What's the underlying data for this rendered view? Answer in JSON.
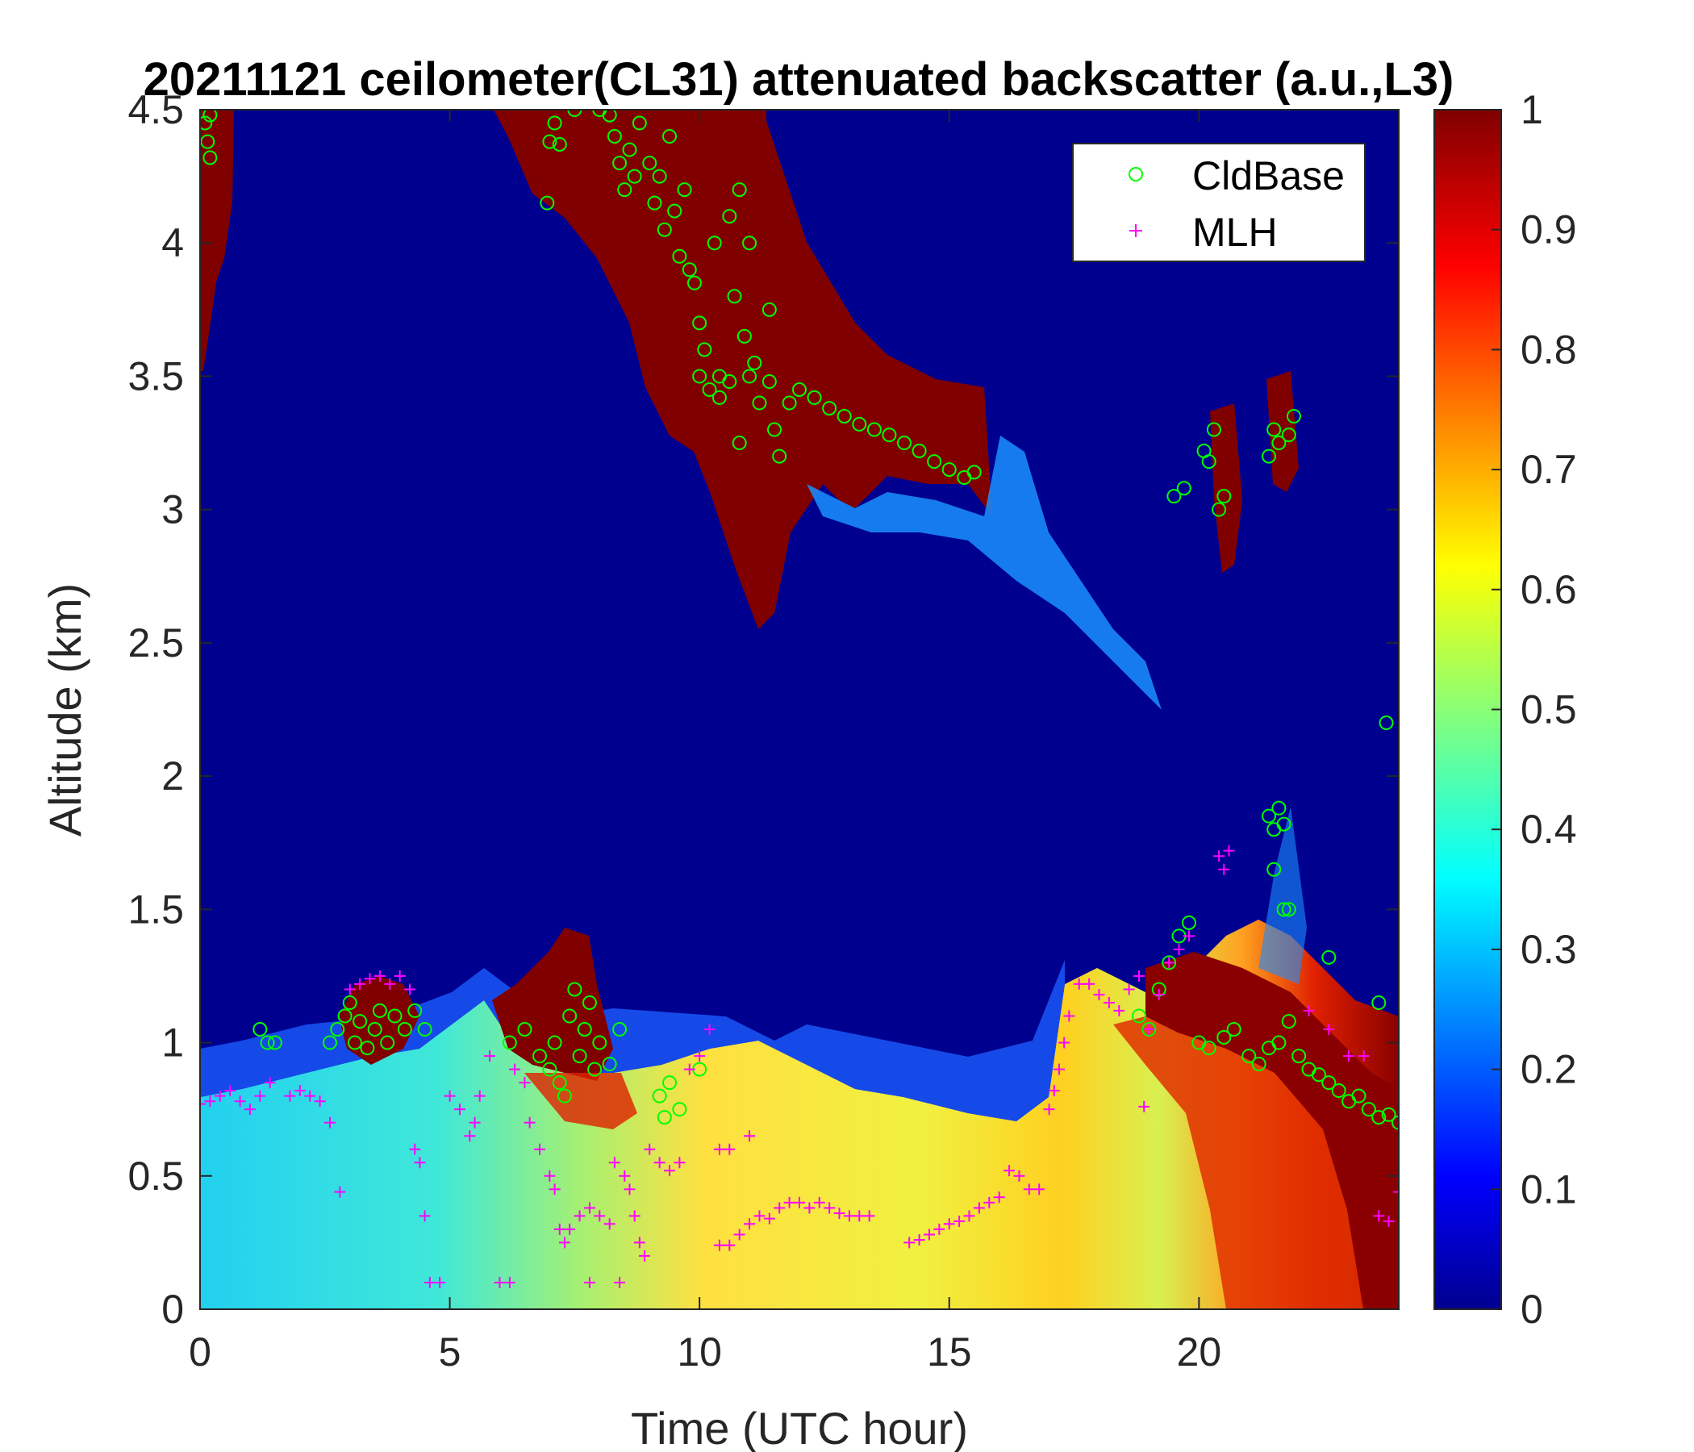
{
  "chart_data": {
    "type": "heatmap",
    "title": "20211121 ceilometer(CL31) attenuated backscatter (a.u.,L3)",
    "xlabel": "Time (UTC hour)",
    "ylabel": "Altitude (km)",
    "xlim": [
      0,
      24
    ],
    "ylim": [
      0,
      4.5
    ],
    "x_ticks": [
      "0",
      "5",
      "10",
      "15",
      "20"
    ],
    "y_ticks": [
      "0",
      "0.5",
      "1",
      "1.5",
      "2",
      "2.5",
      "3",
      "3.5",
      "4",
      "4.5"
    ],
    "colorbar": {
      "colormap": "jet",
      "range": [
        0,
        1
      ],
      "ticks": [
        "0",
        "0.1",
        "0.2",
        "0.3",
        "0.4",
        "0.5",
        "0.6",
        "0.7",
        "0.8",
        "0.9",
        "1"
      ]
    },
    "legend": {
      "position": "top-right",
      "entries": [
        {
          "label": "CldBase",
          "marker": "circle",
          "color": "#00ff00"
        },
        {
          "label": "MLH",
          "marker": "plus",
          "color": "#ff00ff"
        }
      ]
    },
    "series": [
      {
        "name": "CldBase",
        "marker": "circle",
        "color": "#00ff00",
        "points": [
          [
            0.1,
            4.45
          ],
          [
            0.15,
            4.38
          ],
          [
            0.2,
            4.32
          ],
          [
            0.2,
            4.48
          ],
          [
            1.2,
            1.05
          ],
          [
            1.35,
            1.0
          ],
          [
            1.5,
            1.0
          ],
          [
            2.6,
            1.0
          ],
          [
            2.75,
            1.05
          ],
          [
            2.9,
            1.1
          ],
          [
            3.0,
            1.15
          ],
          [
            3.1,
            1.0
          ],
          [
            3.2,
            1.08
          ],
          [
            3.35,
            0.98
          ],
          [
            3.5,
            1.05
          ],
          [
            3.6,
            1.12
          ],
          [
            3.75,
            1.0
          ],
          [
            3.9,
            1.1
          ],
          [
            4.1,
            1.05
          ],
          [
            4.3,
            1.12
          ],
          [
            4.5,
            1.05
          ],
          [
            6.2,
            1.0
          ],
          [
            6.5,
            1.05
          ],
          [
            6.8,
            0.95
          ],
          [
            7.0,
            0.9
          ],
          [
            7.1,
            1.0
          ],
          [
            7.2,
            0.85
          ],
          [
            7.3,
            0.8
          ],
          [
            7.4,
            1.1
          ],
          [
            7.5,
            1.2
          ],
          [
            7.6,
            0.95
          ],
          [
            7.7,
            1.05
          ],
          [
            7.8,
            1.15
          ],
          [
            7.9,
            0.9
          ],
          [
            8.0,
            1.0
          ],
          [
            8.2,
            0.92
          ],
          [
            8.4,
            1.05
          ],
          [
            6.95,
            4.15
          ],
          [
            7.0,
            4.38
          ],
          [
            7.1,
            4.45
          ],
          [
            7.2,
            4.37
          ],
          [
            7.5,
            4.5
          ],
          [
            8.0,
            4.5
          ],
          [
            8.2,
            4.48
          ],
          [
            8.3,
            4.4
          ],
          [
            8.4,
            4.3
          ],
          [
            8.5,
            4.2
          ],
          [
            8.6,
            4.35
          ],
          [
            8.7,
            4.25
          ],
          [
            8.8,
            4.45
          ],
          [
            9.0,
            4.3
          ],
          [
            9.1,
            4.15
          ],
          [
            9.2,
            4.25
          ],
          [
            9.3,
            4.05
          ],
          [
            9.4,
            4.4
          ],
          [
            9.5,
            4.12
          ],
          [
            9.6,
            3.95
          ],
          [
            9.7,
            4.2
          ],
          [
            9.8,
            3.9
          ],
          [
            9.9,
            3.85
          ],
          [
            10.0,
            3.7
          ],
          [
            10.1,
            3.6
          ],
          [
            10.3,
            4.0
          ],
          [
            10.4,
            3.5
          ],
          [
            10.6,
            4.1
          ],
          [
            10.7,
            3.8
          ],
          [
            10.8,
            4.2
          ],
          [
            10.9,
            3.65
          ],
          [
            11.0,
            4.0
          ],
          [
            11.1,
            3.55
          ],
          [
            11.2,
            3.4
          ],
          [
            11.4,
            3.75
          ],
          [
            11.5,
            3.3
          ],
          [
            11.6,
            3.2
          ],
          [
            10.0,
            3.5
          ],
          [
            10.2,
            3.45
          ],
          [
            10.4,
            3.42
          ],
          [
            10.6,
            3.48
          ],
          [
            10.8,
            3.25
          ],
          [
            11.0,
            3.5
          ],
          [
            11.4,
            3.48
          ],
          [
            11.8,
            3.4
          ],
          [
            12.0,
            3.45
          ],
          [
            12.3,
            3.42
          ],
          [
            12.6,
            3.38
          ],
          [
            12.9,
            3.35
          ],
          [
            13.2,
            3.32
          ],
          [
            13.5,
            3.3
          ],
          [
            13.8,
            3.28
          ],
          [
            14.1,
            3.25
          ],
          [
            14.4,
            3.22
          ],
          [
            14.7,
            3.18
          ],
          [
            15.0,
            3.15
          ],
          [
            15.3,
            3.12
          ],
          [
            15.5,
            3.14
          ],
          [
            9.2,
            0.8
          ],
          [
            9.3,
            0.72
          ],
          [
            9.4,
            0.85
          ],
          [
            9.6,
            0.75
          ],
          [
            10.0,
            0.9
          ],
          [
            19.5,
            3.05
          ],
          [
            19.7,
            3.08
          ],
          [
            20.1,
            3.22
          ],
          [
            20.2,
            3.18
          ],
          [
            20.3,
            3.3
          ],
          [
            20.4,
            3.0
          ],
          [
            20.5,
            3.05
          ],
          [
            21.4,
            3.2
          ],
          [
            21.5,
            3.3
          ],
          [
            21.6,
            3.25
          ],
          [
            21.8,
            3.28
          ],
          [
            21.9,
            3.35
          ],
          [
            21.4,
            1.85
          ],
          [
            21.5,
            1.8
          ],
          [
            21.6,
            1.88
          ],
          [
            21.7,
            1.82
          ],
          [
            21.5,
            1.65
          ],
          [
            21.7,
            1.5
          ],
          [
            21.8,
            1.5
          ],
          [
            18.8,
            1.1
          ],
          [
            19.0,
            1.05
          ],
          [
            19.2,
            1.2
          ],
          [
            19.4,
            1.3
          ],
          [
            19.6,
            1.4
          ],
          [
            19.8,
            1.45
          ],
          [
            20.0,
            1.0
          ],
          [
            20.2,
            0.98
          ],
          [
            20.5,
            1.02
          ],
          [
            20.7,
            1.05
          ],
          [
            21.0,
            0.95
          ],
          [
            21.2,
            0.92
          ],
          [
            21.4,
            0.98
          ],
          [
            21.6,
            1.0
          ],
          [
            21.8,
            1.08
          ],
          [
            22.0,
            0.95
          ],
          [
            22.2,
            0.9
          ],
          [
            22.4,
            0.88
          ],
          [
            22.6,
            0.85
          ],
          [
            22.8,
            0.82
          ],
          [
            23.0,
            0.78
          ],
          [
            23.2,
            0.8
          ],
          [
            23.4,
            0.75
          ],
          [
            23.6,
            0.72
          ],
          [
            23.8,
            0.73
          ],
          [
            24.0,
            0.7
          ],
          [
            22.6,
            1.32
          ],
          [
            23.6,
            1.15
          ],
          [
            23.75,
            2.2
          ]
        ]
      },
      {
        "name": "MLH",
        "marker": "plus",
        "color": "#ff00ff",
        "points": [
          [
            0.0,
            0.77
          ],
          [
            0.2,
            0.78
          ],
          [
            0.4,
            0.8
          ],
          [
            0.6,
            0.82
          ],
          [
            0.8,
            0.78
          ],
          [
            1.0,
            0.75
          ],
          [
            1.2,
            0.8
          ],
          [
            1.4,
            0.85
          ],
          [
            1.8,
            0.8
          ],
          [
            2.0,
            0.82
          ],
          [
            2.2,
            0.8
          ],
          [
            2.4,
            0.78
          ],
          [
            2.6,
            0.7
          ],
          [
            2.8,
            0.44
          ],
          [
            3.0,
            1.2
          ],
          [
            3.2,
            1.22
          ],
          [
            3.4,
            1.24
          ],
          [
            3.6,
            1.25
          ],
          [
            3.8,
            1.22
          ],
          [
            4.0,
            1.25
          ],
          [
            4.2,
            1.2
          ],
          [
            4.3,
            0.6
          ],
          [
            4.4,
            0.55
          ],
          [
            4.5,
            0.35
          ],
          [
            4.6,
            0.1
          ],
          [
            4.8,
            0.1
          ],
          [
            5.0,
            0.8
          ],
          [
            5.2,
            0.75
          ],
          [
            5.4,
            0.65
          ],
          [
            5.5,
            0.7
          ],
          [
            5.6,
            0.8
          ],
          [
            5.8,
            0.95
          ],
          [
            6.0,
            0.1
          ],
          [
            6.2,
            0.1
          ],
          [
            6.3,
            0.9
          ],
          [
            6.5,
            0.85
          ],
          [
            6.6,
            0.7
          ],
          [
            6.8,
            0.6
          ],
          [
            7.0,
            0.5
          ],
          [
            7.1,
            0.45
          ],
          [
            7.2,
            0.3
          ],
          [
            7.3,
            0.25
          ],
          [
            7.4,
            0.3
          ],
          [
            7.6,
            0.35
          ],
          [
            7.8,
            0.38
          ],
          [
            8.0,
            0.35
          ],
          [
            8.2,
            0.32
          ],
          [
            7.8,
            0.1
          ],
          [
            8.4,
            0.1
          ],
          [
            8.3,
            0.55
          ],
          [
            8.5,
            0.5
          ],
          [
            8.6,
            0.45
          ],
          [
            8.7,
            0.35
          ],
          [
            8.8,
            0.25
          ],
          [
            8.9,
            0.2
          ],
          [
            9.0,
            0.6
          ],
          [
            9.2,
            0.55
          ],
          [
            9.4,
            0.52
          ],
          [
            9.6,
            0.55
          ],
          [
            9.8,
            0.9
          ],
          [
            10.0,
            0.95
          ],
          [
            10.2,
            1.05
          ],
          [
            10.4,
            0.24
          ],
          [
            10.6,
            0.24
          ],
          [
            10.8,
            0.28
          ],
          [
            11.0,
            0.32
          ],
          [
            11.2,
            0.35
          ],
          [
            11.4,
            0.34
          ],
          [
            10.4,
            0.6
          ],
          [
            10.6,
            0.6
          ],
          [
            11.0,
            0.65
          ],
          [
            11.6,
            0.38
          ],
          [
            11.8,
            0.4
          ],
          [
            12.0,
            0.4
          ],
          [
            12.2,
            0.38
          ],
          [
            12.4,
            0.4
          ],
          [
            12.6,
            0.38
          ],
          [
            12.8,
            0.36
          ],
          [
            13.0,
            0.35
          ],
          [
            13.2,
            0.35
          ],
          [
            13.4,
            0.35
          ],
          [
            14.2,
            0.25
          ],
          [
            14.4,
            0.26
          ],
          [
            14.6,
            0.28
          ],
          [
            14.8,
            0.3
          ],
          [
            15.0,
            0.32
          ],
          [
            15.2,
            0.33
          ],
          [
            15.4,
            0.35
          ],
          [
            15.6,
            0.38
          ],
          [
            15.8,
            0.4
          ],
          [
            16.0,
            0.42
          ],
          [
            16.2,
            0.52
          ],
          [
            16.4,
            0.5
          ],
          [
            16.6,
            0.45
          ],
          [
            16.8,
            0.45
          ],
          [
            17.0,
            0.75
          ],
          [
            17.1,
            0.82
          ],
          [
            17.2,
            0.9
          ],
          [
            17.3,
            1.0
          ],
          [
            17.4,
            1.1
          ],
          [
            17.6,
            1.22
          ],
          [
            17.8,
            1.22
          ],
          [
            18.0,
            1.18
          ],
          [
            18.2,
            1.15
          ],
          [
            18.4,
            1.12
          ],
          [
            18.6,
            1.2
          ],
          [
            18.8,
            1.25
          ],
          [
            19.0,
            1.05
          ],
          [
            19.2,
            1.18
          ],
          [
            19.4,
            1.3
          ],
          [
            19.6,
            1.35
          ],
          [
            19.8,
            1.4
          ],
          [
            18.9,
            0.76
          ],
          [
            20.4,
            1.7
          ],
          [
            20.5,
            1.65
          ],
          [
            20.6,
            1.72
          ],
          [
            22.2,
            1.12
          ],
          [
            22.6,
            1.05
          ],
          [
            23.0,
            0.95
          ],
          [
            23.3,
            0.95
          ],
          [
            23.6,
            0.35
          ],
          [
            23.8,
            0.33
          ],
          [
            24.0,
            0.44
          ]
        ]
      }
    ]
  }
}
